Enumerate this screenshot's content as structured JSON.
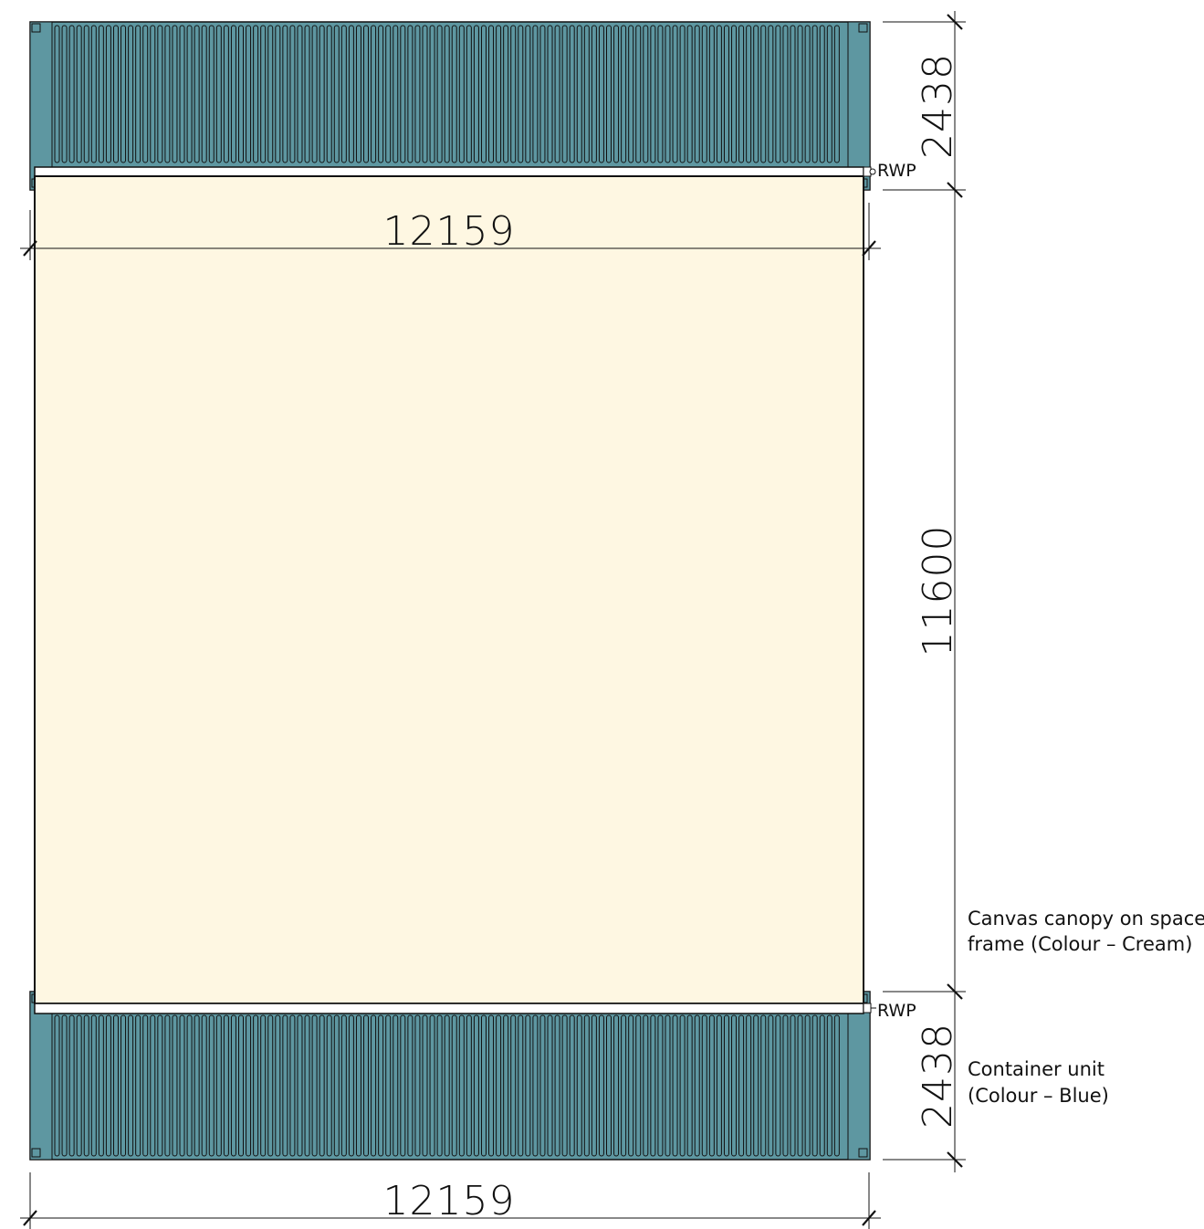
{
  "dimensions": {
    "top_width": "12159",
    "bottom_width": "12159",
    "top_container_depth": "2438",
    "canopy_depth": "11600",
    "bottom_container_depth": "2438"
  },
  "labels": {
    "rwp_top": "RWP",
    "rwp_bottom": "RWP",
    "canopy_note_line1": "Canvas canopy on space",
    "canopy_note_line2": "frame (Colour – Cream)",
    "container_note_line1": "Container unit",
    "container_note_line2": "(Colour – Blue)"
  },
  "colors": {
    "container_blue": "#5E97A1",
    "canopy_cream": "#FEF7E2",
    "line": "#111111"
  }
}
